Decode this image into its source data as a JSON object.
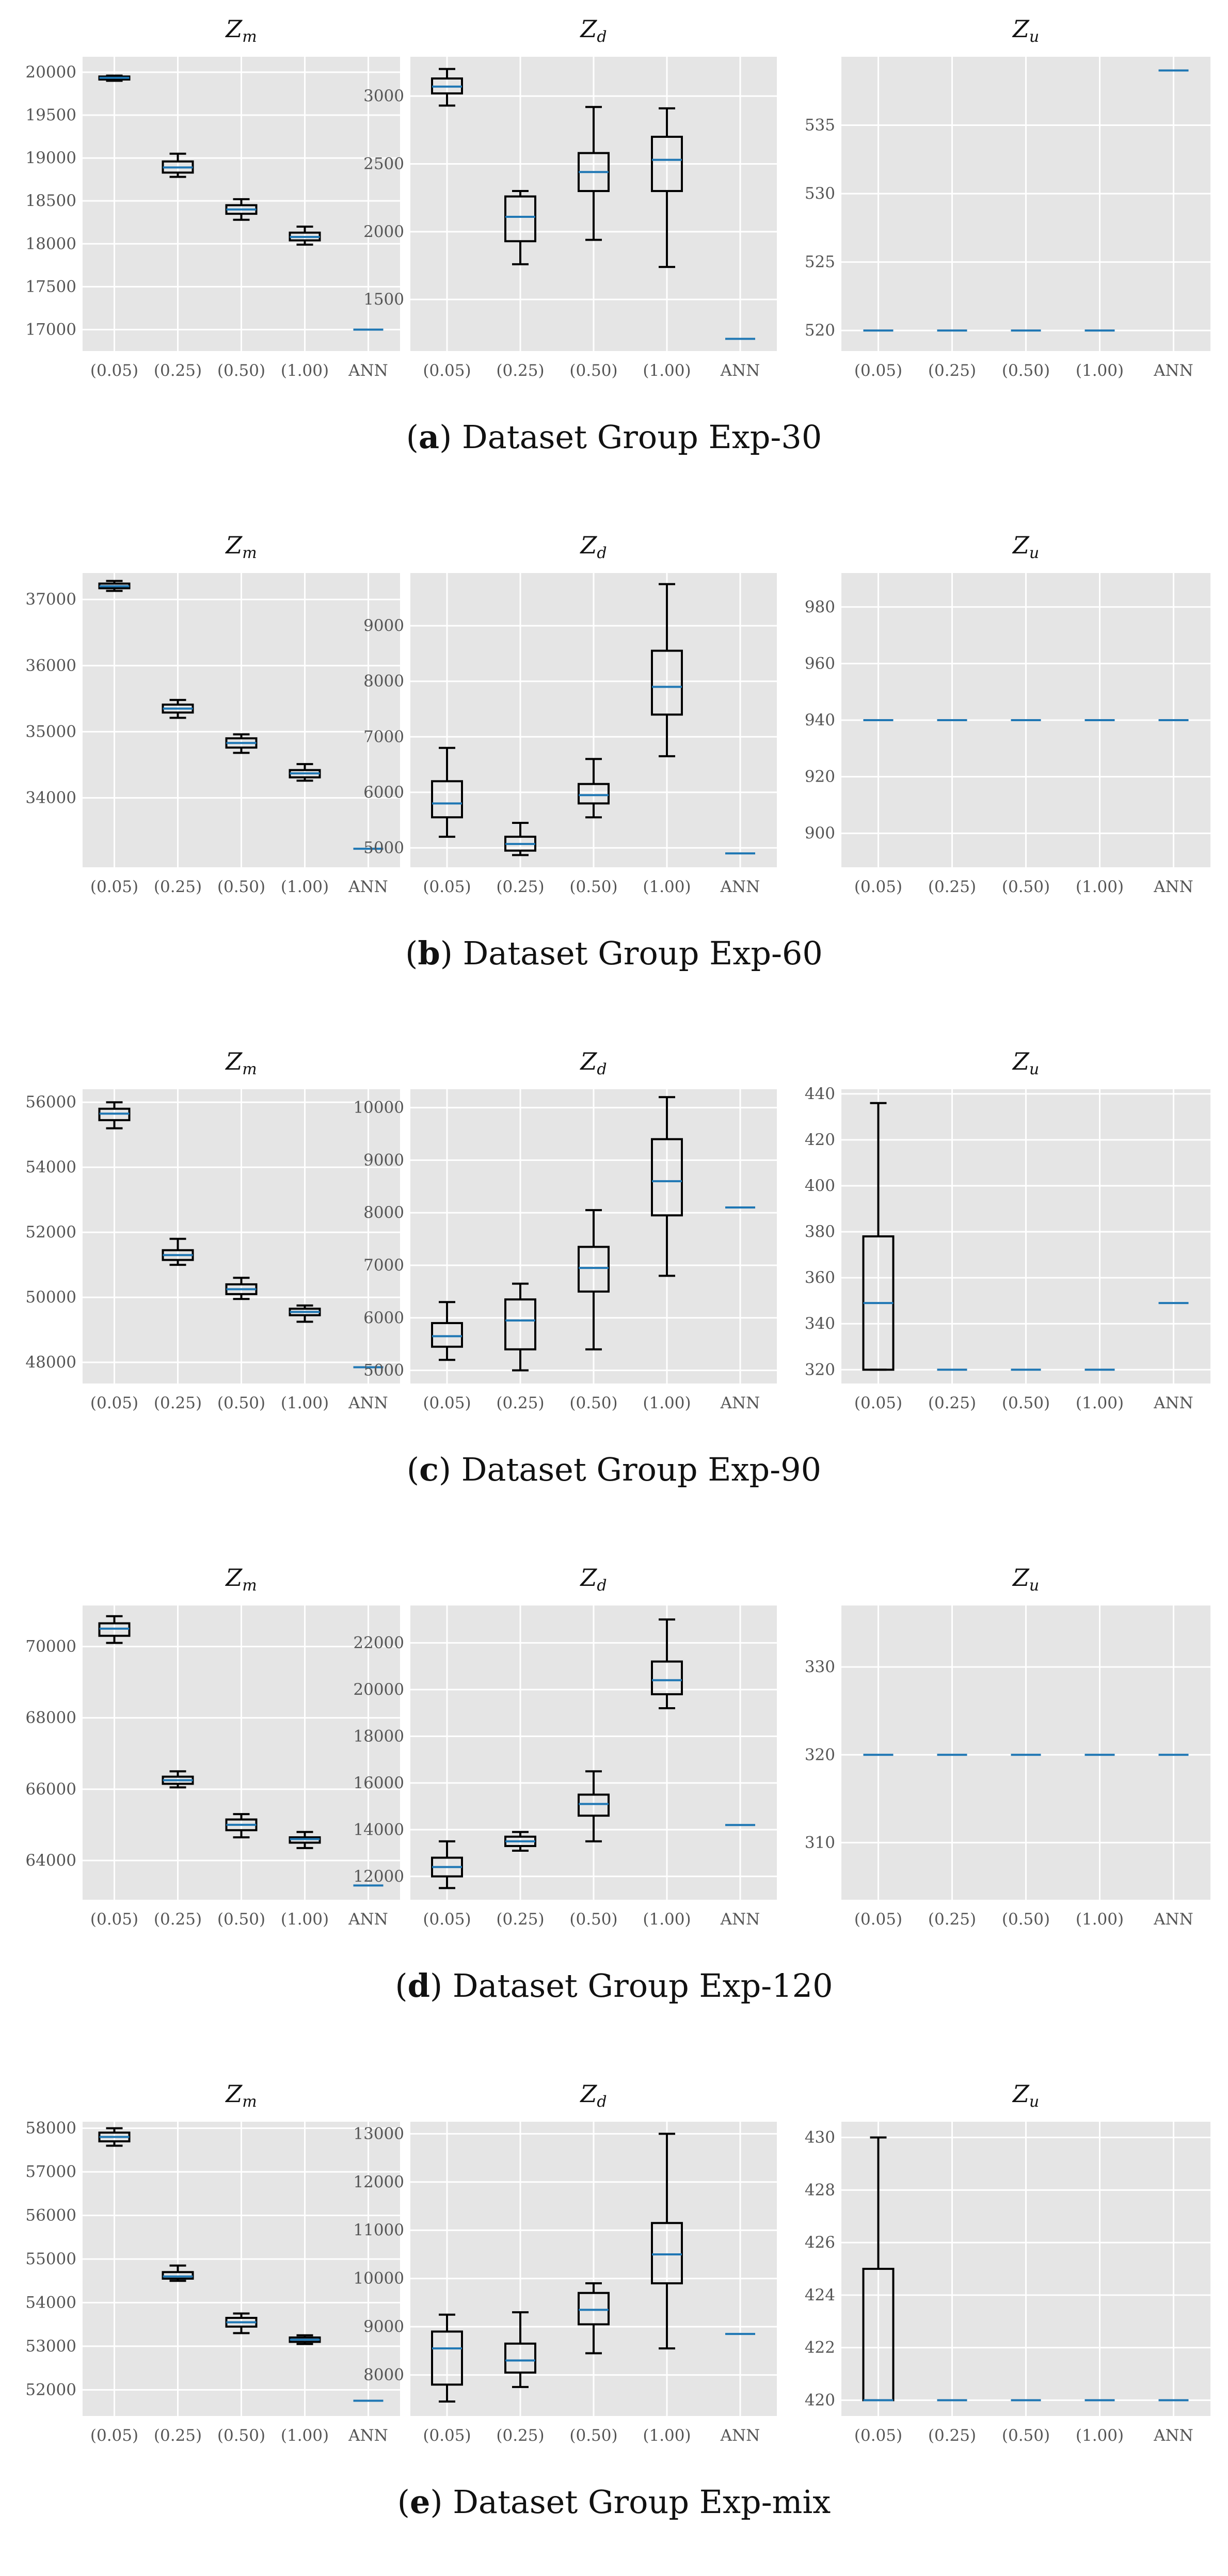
{
  "figure": {
    "panel_titles": {
      "zm": {
        "base": "Z",
        "sub": "m"
      },
      "zd": {
        "base": "Z",
        "sub": "d"
      },
      "zu": {
        "base": "Z",
        "sub": "u"
      }
    }
  },
  "colors": {
    "panel_bg": "#e5e5e5",
    "grid": "#ffffff",
    "median": "#1f77b4",
    "box": "#000000",
    "tick_text": "#555555"
  },
  "groups": [
    {
      "letter": "a",
      "caption": "Dataset Group Exp-30"
    },
    {
      "letter": "b",
      "caption": "Dataset Group Exp-60"
    },
    {
      "letter": "c",
      "caption": "Dataset Group Exp-90"
    },
    {
      "letter": "d",
      "caption": "Dataset Group Exp-120"
    },
    {
      "letter": "e",
      "caption": "Dataset Group Exp-mix"
    }
  ],
  "chart_data": [
    {
      "type": "box",
      "group": "a",
      "panel": "Zm",
      "title": "Z_m",
      "categories": [
        "(0.05)",
        "(0.25)",
        "(0.50)",
        "(1.00)",
        "ANN"
      ],
      "ylim": [
        16750,
        20180
      ],
      "yticks": [
        17000,
        17500,
        18000,
        18500,
        19000,
        19500,
        20000
      ],
      "boxes": [
        {
          "whislo": 19900,
          "q1": 19915,
          "med": 19935,
          "q3": 19950,
          "whishi": 19960
        },
        {
          "whislo": 18780,
          "q1": 18830,
          "med": 18890,
          "q3": 18960,
          "whishi": 19050
        },
        {
          "whislo": 18280,
          "q1": 18350,
          "med": 18400,
          "q3": 18450,
          "whishi": 18520
        },
        {
          "whislo": 17990,
          "q1": 18040,
          "med": 18080,
          "q3": 18130,
          "whishi": 18200
        },
        {
          "whislo": 17000,
          "q1": 17000,
          "med": 17000,
          "q3": 17000,
          "whishi": 17000
        }
      ]
    },
    {
      "type": "box",
      "group": "a",
      "panel": "Zd",
      "title": "Z_d",
      "categories": [
        "(0.05)",
        "(0.25)",
        "(0.50)",
        "(1.00)",
        "ANN"
      ],
      "ylim": [
        1120,
        3290
      ],
      "yticks": [
        1500,
        2000,
        2500,
        3000
      ],
      "boxes": [
        {
          "whislo": 2930,
          "q1": 3020,
          "med": 3070,
          "q3": 3130,
          "whishi": 3200
        },
        {
          "whislo": 1760,
          "q1": 1930,
          "med": 2110,
          "q3": 2260,
          "whishi": 2300
        },
        {
          "whislo": 1940,
          "q1": 2300,
          "med": 2440,
          "q3": 2580,
          "whishi": 2920
        },
        {
          "whislo": 1740,
          "q1": 2300,
          "med": 2530,
          "q3": 2700,
          "whishi": 2910
        },
        {
          "whislo": 1210,
          "q1": 1210,
          "med": 1210,
          "q3": 1210,
          "whishi": 1210
        }
      ]
    },
    {
      "type": "box",
      "group": "a",
      "panel": "Zu",
      "title": "Z_u",
      "categories": [
        "(0.05)",
        "(0.25)",
        "(0.50)",
        "(1.00)",
        "ANN"
      ],
      "ylim": [
        518.5,
        540
      ],
      "yticks": [
        520,
        525,
        530,
        535
      ],
      "boxes": [
        {
          "whislo": 520,
          "q1": 520,
          "med": 520,
          "q3": 520,
          "whishi": 520
        },
        {
          "whislo": 520,
          "q1": 520,
          "med": 520,
          "q3": 520,
          "whishi": 520
        },
        {
          "whislo": 520,
          "q1": 520,
          "med": 520,
          "q3": 520,
          "whishi": 520
        },
        {
          "whislo": 520,
          "q1": 520,
          "med": 520,
          "q3": 520,
          "whishi": 520
        },
        {
          "whislo": 539,
          "q1": 539,
          "med": 539,
          "q3": 539,
          "whishi": 539
        }
      ]
    },
    {
      "type": "box",
      "group": "b",
      "panel": "Zm",
      "title": "Z_m",
      "categories": [
        "(0.05)",
        "(0.25)",
        "(0.50)",
        "(1.00)",
        "ANN"
      ],
      "ylim": [
        32950,
        37400
      ],
      "yticks": [
        34000,
        35000,
        36000,
        37000
      ],
      "boxes": [
        {
          "whislo": 37130,
          "q1": 37170,
          "med": 37200,
          "q3": 37240,
          "whishi": 37280
        },
        {
          "whislo": 35210,
          "q1": 35290,
          "med": 35350,
          "q3": 35410,
          "whishi": 35480
        },
        {
          "whislo": 34680,
          "q1": 34760,
          "med": 34830,
          "q3": 34900,
          "whishi": 34960
        },
        {
          "whislo": 34260,
          "q1": 34310,
          "med": 34370,
          "q3": 34420,
          "whishi": 34510
        },
        {
          "whislo": 33230,
          "q1": 33230,
          "med": 33230,
          "q3": 33230,
          "whishi": 33230
        }
      ]
    },
    {
      "type": "box",
      "group": "b",
      "panel": "Zd",
      "title": "Z_d",
      "categories": [
        "(0.05)",
        "(0.25)",
        "(0.50)",
        "(1.00)",
        "ANN"
      ],
      "ylim": [
        4650,
        9950
      ],
      "yticks": [
        5000,
        6000,
        7000,
        8000,
        9000
      ],
      "boxes": [
        {
          "whislo": 5200,
          "q1": 5550,
          "med": 5800,
          "q3": 6200,
          "whishi": 6800
        },
        {
          "whislo": 4870,
          "q1": 4950,
          "med": 5070,
          "q3": 5200,
          "whishi": 5450
        },
        {
          "whislo": 5550,
          "q1": 5800,
          "med": 5950,
          "q3": 6150,
          "whishi": 6600
        },
        {
          "whislo": 6650,
          "q1": 7400,
          "med": 7900,
          "q3": 8550,
          "whishi": 9750
        },
        {
          "whislo": 4900,
          "q1": 4900,
          "med": 4900,
          "q3": 4900,
          "whishi": 4900
        }
      ]
    },
    {
      "type": "box",
      "group": "b",
      "panel": "Zu",
      "title": "Z_u",
      "categories": [
        "(0.05)",
        "(0.25)",
        "(0.50)",
        "(1.00)",
        "ANN"
      ],
      "ylim": [
        888,
        992
      ],
      "yticks": [
        900,
        920,
        940,
        960,
        980
      ],
      "boxes": [
        {
          "whislo": 940,
          "q1": 940,
          "med": 940,
          "q3": 940,
          "whishi": 940
        },
        {
          "whislo": 940,
          "q1": 940,
          "med": 940,
          "q3": 940,
          "whishi": 940
        },
        {
          "whislo": 940,
          "q1": 940,
          "med": 940,
          "q3": 940,
          "whishi": 940
        },
        {
          "whislo": 940,
          "q1": 940,
          "med": 940,
          "q3": 940,
          "whishi": 940
        },
        {
          "whislo": 940,
          "q1": 940,
          "med": 940,
          "q3": 940,
          "whishi": 940
        }
      ]
    },
    {
      "type": "box",
      "group": "c",
      "panel": "Zm",
      "title": "Z_m",
      "categories": [
        "(0.05)",
        "(0.25)",
        "(0.50)",
        "(1.00)",
        "ANN"
      ],
      "ylim": [
        47350,
        56400
      ],
      "yticks": [
        48000,
        50000,
        52000,
        54000,
        56000
      ],
      "boxes": [
        {
          "whislo": 55200,
          "q1": 55450,
          "med": 55650,
          "q3": 55800,
          "whishi": 56000
        },
        {
          "whislo": 51000,
          "q1": 51150,
          "med": 51300,
          "q3": 51450,
          "whishi": 51800
        },
        {
          "whislo": 49950,
          "q1": 50100,
          "med": 50250,
          "q3": 50400,
          "whishi": 50600
        },
        {
          "whislo": 49250,
          "q1": 49450,
          "med": 49550,
          "q3": 49650,
          "whishi": 49750
        },
        {
          "whislo": 47850,
          "q1": 47850,
          "med": 47850,
          "q3": 47850,
          "whishi": 47850
        }
      ]
    },
    {
      "type": "box",
      "group": "c",
      "panel": "Zd",
      "title": "Z_d",
      "categories": [
        "(0.05)",
        "(0.25)",
        "(0.50)",
        "(1.00)",
        "ANN"
      ],
      "ylim": [
        4750,
        10350
      ],
      "yticks": [
        5000,
        6000,
        7000,
        8000,
        9000,
        10000
      ],
      "boxes": [
        {
          "whislo": 5200,
          "q1": 5450,
          "med": 5650,
          "q3": 5900,
          "whishi": 6300
        },
        {
          "whislo": 5000,
          "q1": 5400,
          "med": 5950,
          "q3": 6350,
          "whishi": 6650
        },
        {
          "whislo": 5400,
          "q1": 6500,
          "med": 6950,
          "q3": 7350,
          "whishi": 8050
        },
        {
          "whislo": 6800,
          "q1": 7950,
          "med": 8600,
          "q3": 9400,
          "whishi": 10200
        },
        {
          "whislo": 8100,
          "q1": 8100,
          "med": 8100,
          "q3": 8100,
          "whishi": 8100
        }
      ]
    },
    {
      "type": "box",
      "group": "c",
      "panel": "Zu",
      "title": "Z_u",
      "categories": [
        "(0.05)",
        "(0.25)",
        "(0.50)",
        "(1.00)",
        "ANN"
      ],
      "ylim": [
        314,
        442
      ],
      "yticks": [
        320,
        340,
        360,
        380,
        400,
        420,
        440
      ],
      "boxes": [
        {
          "whislo": 320,
          "q1": 320,
          "med": 349,
          "q3": 378,
          "whishi": 436
        },
        {
          "whislo": 320,
          "q1": 320,
          "med": 320,
          "q3": 320,
          "whishi": 320
        },
        {
          "whislo": 320,
          "q1": 320,
          "med": 320,
          "q3": 320,
          "whishi": 320
        },
        {
          "whislo": 320,
          "q1": 320,
          "med": 320,
          "q3": 320,
          "whishi": 320
        },
        {
          "whislo": 349,
          "q1": 349,
          "med": 349,
          "q3": 349,
          "whishi": 349
        }
      ]
    },
    {
      "type": "box",
      "group": "d",
      "panel": "Zm",
      "title": "Z_m",
      "categories": [
        "(0.05)",
        "(0.25)",
        "(0.50)",
        "(1.00)",
        "ANN"
      ],
      "ylim": [
        62900,
        71150
      ],
      "yticks": [
        64000,
        66000,
        68000,
        70000
      ],
      "boxes": [
        {
          "whislo": 70100,
          "q1": 70300,
          "med": 70500,
          "q3": 70650,
          "whishi": 70850
        },
        {
          "whislo": 66050,
          "q1": 66150,
          "med": 66250,
          "q3": 66350,
          "whishi": 66500
        },
        {
          "whislo": 64650,
          "q1": 64850,
          "med": 65000,
          "q3": 65150,
          "whishi": 65300
        },
        {
          "whislo": 64350,
          "q1": 64500,
          "med": 64600,
          "q3": 64650,
          "whishi": 64800
        },
        {
          "whislo": 63300,
          "q1": 63300,
          "med": 63300,
          "q3": 63300,
          "whishi": 63300
        }
      ]
    },
    {
      "type": "box",
      "group": "d",
      "panel": "Zd",
      "title": "Z_d",
      "categories": [
        "(0.05)",
        "(0.25)",
        "(0.50)",
        "(1.00)",
        "ANN"
      ],
      "ylim": [
        11000,
        23600
      ],
      "yticks": [
        12000,
        14000,
        16000,
        18000,
        20000,
        22000
      ],
      "boxes": [
        {
          "whislo": 11500,
          "q1": 12000,
          "med": 12400,
          "q3": 12800,
          "whishi": 13500
        },
        {
          "whislo": 13100,
          "q1": 13300,
          "med": 13500,
          "q3": 13700,
          "whishi": 13900
        },
        {
          "whislo": 13500,
          "q1": 14600,
          "med": 15100,
          "q3": 15500,
          "whishi": 16500
        },
        {
          "whislo": 19200,
          "q1": 19800,
          "med": 20400,
          "q3": 21200,
          "whishi": 23000
        },
        {
          "whislo": 14200,
          "q1": 14200,
          "med": 14200,
          "q3": 14200,
          "whishi": 14200
        }
      ]
    },
    {
      "type": "box",
      "group": "d",
      "panel": "Zu",
      "title": "Z_u",
      "categories": [
        "(0.05)",
        "(0.25)",
        "(0.50)",
        "(1.00)",
        "ANN"
      ],
      "ylim": [
        303.5,
        337
      ],
      "yticks": [
        310,
        320,
        330
      ],
      "boxes": [
        {
          "whislo": 320,
          "q1": 320,
          "med": 320,
          "q3": 320,
          "whishi": 320
        },
        {
          "whislo": 320,
          "q1": 320,
          "med": 320,
          "q3": 320,
          "whishi": 320
        },
        {
          "whislo": 320,
          "q1": 320,
          "med": 320,
          "q3": 320,
          "whishi": 320
        },
        {
          "whislo": 320,
          "q1": 320,
          "med": 320,
          "q3": 320,
          "whishi": 320
        },
        {
          "whislo": 320,
          "q1": 320,
          "med": 320,
          "q3": 320,
          "whishi": 320
        }
      ]
    },
    {
      "type": "box",
      "group": "e",
      "panel": "Zm",
      "title": "Z_m",
      "categories": [
        "(0.05)",
        "(0.25)",
        "(0.50)",
        "(1.00)",
        "ANN"
      ],
      "ylim": [
        51400,
        58150
      ],
      "yticks": [
        52000,
        53000,
        54000,
        55000,
        56000,
        57000,
        58000
      ],
      "boxes": [
        {
          "whislo": 57600,
          "q1": 57700,
          "med": 57800,
          "q3": 57900,
          "whishi": 58000
        },
        {
          "whislo": 54500,
          "q1": 54550,
          "med": 54600,
          "q3": 54700,
          "whishi": 54850
        },
        {
          "whislo": 53300,
          "q1": 53450,
          "med": 53550,
          "q3": 53650,
          "whishi": 53750
        },
        {
          "whislo": 53050,
          "q1": 53100,
          "med": 53150,
          "q3": 53200,
          "whishi": 53250
        },
        {
          "whislo": 51750,
          "q1": 51750,
          "med": 51750,
          "q3": 51750,
          "whishi": 51750
        }
      ]
    },
    {
      "type": "box",
      "group": "e",
      "panel": "Zd",
      "title": "Z_d",
      "categories": [
        "(0.05)",
        "(0.25)",
        "(0.50)",
        "(1.00)",
        "ANN"
      ],
      "ylim": [
        7150,
        13250
      ],
      "yticks": [
        8000,
        9000,
        10000,
        11000,
        12000,
        13000
      ],
      "boxes": [
        {
          "whislo": 7450,
          "q1": 7800,
          "med": 8550,
          "q3": 8900,
          "whishi": 9250
        },
        {
          "whislo": 7750,
          "q1": 8050,
          "med": 8300,
          "q3": 8650,
          "whishi": 9300
        },
        {
          "whislo": 8450,
          "q1": 9050,
          "med": 9350,
          "q3": 9700,
          "whishi": 9900
        },
        {
          "whislo": 8550,
          "q1": 9900,
          "med": 10500,
          "q3": 11150,
          "whishi": 13000
        },
        {
          "whislo": 8850,
          "q1": 8850,
          "med": 8850,
          "q3": 8850,
          "whishi": 8850
        }
      ]
    },
    {
      "type": "box",
      "group": "e",
      "panel": "Zu",
      "title": "Z_u",
      "categories": [
        "(0.05)",
        "(0.25)",
        "(0.50)",
        "(1.00)",
        "ANN"
      ],
      "ylim": [
        419.4,
        430.6
      ],
      "yticks": [
        420,
        422,
        424,
        426,
        428,
        430
      ],
      "boxes": [
        {
          "whislo": 420,
          "q1": 420,
          "med": 420,
          "q3": 425,
          "whishi": 430
        },
        {
          "whislo": 420,
          "q1": 420,
          "med": 420,
          "q3": 420,
          "whishi": 420
        },
        {
          "whislo": 420,
          "q1": 420,
          "med": 420,
          "q3": 420,
          "whishi": 420
        },
        {
          "whislo": 420,
          "q1": 420,
          "med": 420,
          "q3": 420,
          "whishi": 420
        },
        {
          "whislo": 420,
          "q1": 420,
          "med": 420,
          "q3": 420,
          "whishi": 420
        }
      ]
    }
  ]
}
